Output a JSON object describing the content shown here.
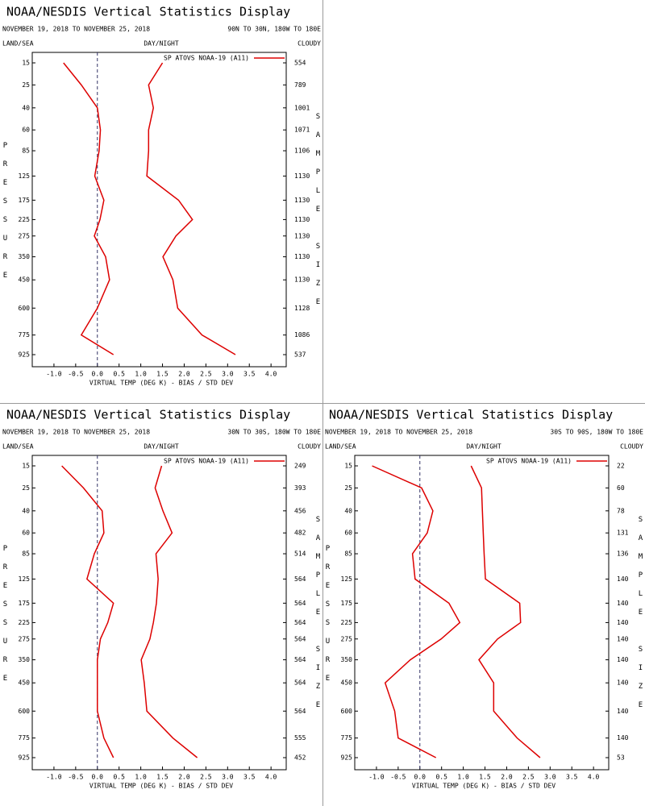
{
  "chart_data": [
    {
      "type": "line",
      "title": "NOAA/NESDIS Vertical Statistics Display",
      "subtitle": "NOVEMBER 19, 2018 TO NOVEMBER 25, 2018",
      "region": "90N TO 30N, 180W TO 180E",
      "left_header": "LAND/SEA",
      "center_header": "DAY/NIGHT",
      "right_header": "CLOUDY",
      "y_label": "PRESSURE",
      "y2_label": "SAMPLE SIZE",
      "x_label": "VIRTUAL TEMP (DEG K) - BIAS / STD DEV",
      "categories": [
        15,
        25,
        40,
        60,
        85,
        125,
        175,
        225,
        275,
        350,
        450,
        600,
        775,
        925
      ],
      "sample_size": [
        554,
        789,
        1001,
        1071,
        1106,
        1130,
        1130,
        1130,
        1130,
        1130,
        1130,
        1128,
        1086,
        537
      ],
      "series": [
        {
          "name": "SP ATOVS NOAA-19 (A11)",
          "color": "#dd0000",
          "values": [
            -0.78,
            -0.37,
            0.0,
            0.07,
            0.04,
            -0.06,
            0.15,
            0.06,
            -0.07,
            0.19,
            0.28,
            0.0,
            -0.37,
            0.37
          ]
        },
        {
          "color": "#dd0000",
          "values": [
            1.5,
            1.18,
            1.29,
            1.18,
            1.18,
            1.14,
            1.87,
            2.19,
            1.81,
            1.51,
            1.74,
            1.85,
            2.41,
            3.18
          ]
        }
      ],
      "xlim": [
        -1.5,
        4.35
      ],
      "xticks": [
        {
          "value": -1,
          "label": "-1.0"
        },
        -0.5,
        {
          "value": 0,
          "label": "0.0"
        },
        0.5,
        {
          "value": 1,
          "label": "1.0"
        },
        1.5,
        {
          "value": 2,
          "label": "2.0"
        },
        2.5,
        {
          "value": 3,
          "label": "3.0"
        },
        3.5,
        {
          "value": 4,
          "label": "4.0"
        }
      ]
    },
    {
      "type": "line",
      "title": "NOAA/NESDIS Vertical Statistics Display",
      "subtitle": "NOVEMBER 19, 2018 TO NOVEMBER 25, 2018",
      "region": "30N TO 30S, 180W TO 180E",
      "left_header": "LAND/SEA",
      "center_header": "DAY/NIGHT",
      "right_header": "CLOUDY",
      "y_label": "PRESSURE",
      "y2_label": "SAMPLE SIZE",
      "x_label": "VIRTUAL TEMP (DEG K) - BIAS / STD DEV",
      "categories": [
        15,
        25,
        40,
        60,
        85,
        125,
        175,
        225,
        275,
        350,
        450,
        600,
        775,
        925
      ],
      "sample_size": [
        249,
        393,
        456,
        482,
        514,
        564,
        564,
        564,
        564,
        564,
        564,
        564,
        555,
        452
      ],
      "series": [
        {
          "name": "SP ATOVS NOAA-19 (A11)",
          "color": "#dd0000",
          "values": [
            -0.82,
            -0.32,
            0.11,
            0.15,
            -0.07,
            -0.24,
            0.37,
            0.24,
            0.07,
            0.0,
            0.0,
            0.0,
            0.15,
            0.37
          ]
        },
        {
          "color": "#dd0000",
          "values": [
            1.48,
            1.33,
            1.51,
            1.72,
            1.35,
            1.4,
            1.36,
            1.29,
            1.21,
            1.01,
            1.08,
            1.14,
            1.74,
            2.3
          ]
        }
      ],
      "xlim": [
        -1.5,
        4.35
      ],
      "xticks": [
        {
          "value": -1,
          "label": "-1.0"
        },
        -0.5,
        {
          "value": 0,
          "label": "0.0"
        },
        0.5,
        {
          "value": 1,
          "label": "1.0"
        },
        1.5,
        {
          "value": 2,
          "label": "2.0"
        },
        2.5,
        {
          "value": 3,
          "label": "3.0"
        },
        3.5,
        {
          "value": 4,
          "label": "4.0"
        }
      ]
    },
    {
      "type": "line",
      "title": "NOAA/NESDIS Vertical Statistics Display",
      "subtitle": "NOVEMBER 19, 2018 TO NOVEMBER 25, 2018",
      "region": "30S TO 90S, 180W TO 180E",
      "left_header": "LAND/SEA",
      "center_header": "DAY/NIGHT",
      "right_header": "CLOUDY",
      "y_label": "PRESSURE",
      "y2_label": "SAMPLE SIZE",
      "x_label": "VIRTUAL TEMP (DEG K) - BIAS / STD DEV",
      "categories": [
        15,
        25,
        40,
        60,
        85,
        125,
        175,
        225,
        275,
        350,
        450,
        600,
        775,
        925
      ],
      "sample_size": [
        22,
        60,
        78,
        131,
        136,
        140,
        140,
        140,
        140,
        140,
        140,
        140,
        140,
        53
      ],
      "series": [
        {
          "name": "SP ATOVS NOAA-19 (A11)",
          "color": "#dd0000",
          "values": [
            -1.1,
            0.04,
            0.3,
            0.17,
            -0.17,
            -0.11,
            0.67,
            0.92,
            0.49,
            -0.22,
            -0.8,
            -0.58,
            -0.5,
            0.37
          ]
        },
        {
          "color": "#dd0000",
          "values": [
            1.18,
            1.42,
            1.44,
            1.46,
            1.48,
            1.51,
            2.3,
            2.32,
            1.79,
            1.36,
            1.7,
            1.7,
            2.24,
            2.77
          ]
        }
      ],
      "xlim": [
        -1.5,
        4.35
      ],
      "xticks": [
        {
          "value": -1,
          "label": "-1.0"
        },
        -0.5,
        {
          "value": 0,
          "label": "0.0"
        },
        0.5,
        {
          "value": 1,
          "label": "1.0"
        },
        1.5,
        {
          "value": 2,
          "label": "2.0"
        },
        2.5,
        {
          "value": 3,
          "label": "3.0"
        },
        3.5,
        {
          "value": 4,
          "label": "4.0"
        }
      ]
    }
  ]
}
